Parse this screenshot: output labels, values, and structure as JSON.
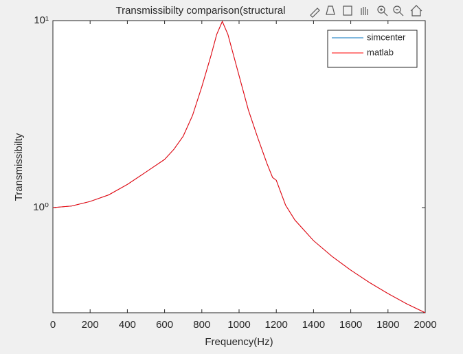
{
  "chart_data": {
    "type": "line",
    "title": "Transmissibilty comparison(structural",
    "xlabel": "Frequency(Hz)",
    "ylabel": "Transmissibilty",
    "x": [
      0,
      100,
      200,
      300,
      400,
      500,
      600,
      650,
      700,
      750,
      800,
      850,
      880,
      910,
      940,
      1000,
      1050,
      1100,
      1150,
      1180,
      1200,
      1250,
      1300,
      1400,
      1500,
      1600,
      1700,
      1800,
      1900,
      2000
    ],
    "series": [
      {
        "name": "simcenter",
        "color": "#0072bd",
        "values": [
          1.0,
          1.02,
          1.079,
          1.17,
          1.33,
          1.55,
          1.81,
          2.05,
          2.41,
          3.11,
          4.43,
          6.54,
          8.44,
          9.9,
          8.44,
          5.08,
          3.33,
          2.37,
          1.72,
          1.45,
          1.4,
          1.03,
          0.858,
          0.666,
          0.548,
          0.463,
          0.398,
          0.347,
          0.306,
          0.274
        ]
      },
      {
        "name": "matlab",
        "color": "#ff0000",
        "values": [
          1.0,
          1.02,
          1.079,
          1.17,
          1.33,
          1.55,
          1.81,
          2.05,
          2.41,
          3.11,
          4.43,
          6.54,
          8.44,
          9.9,
          8.44,
          5.08,
          3.33,
          2.37,
          1.72,
          1.45,
          1.4,
          1.03,
          0.858,
          0.666,
          0.548,
          0.463,
          0.398,
          0.347,
          0.306,
          0.274
        ]
      }
    ],
    "xlim": [
      0,
      2000
    ],
    "xticks": [
      0,
      200,
      400,
      600,
      800,
      1000,
      1200,
      1400,
      1600,
      1800,
      2000
    ],
    "ylim": [
      0.274,
      10
    ],
    "yscale": "log",
    "yticks": [
      {
        "value": 1,
        "label": "10⁰"
      },
      {
        "value": 10,
        "label": "10¹"
      }
    ],
    "grid": false,
    "legend": "northeast"
  }
}
